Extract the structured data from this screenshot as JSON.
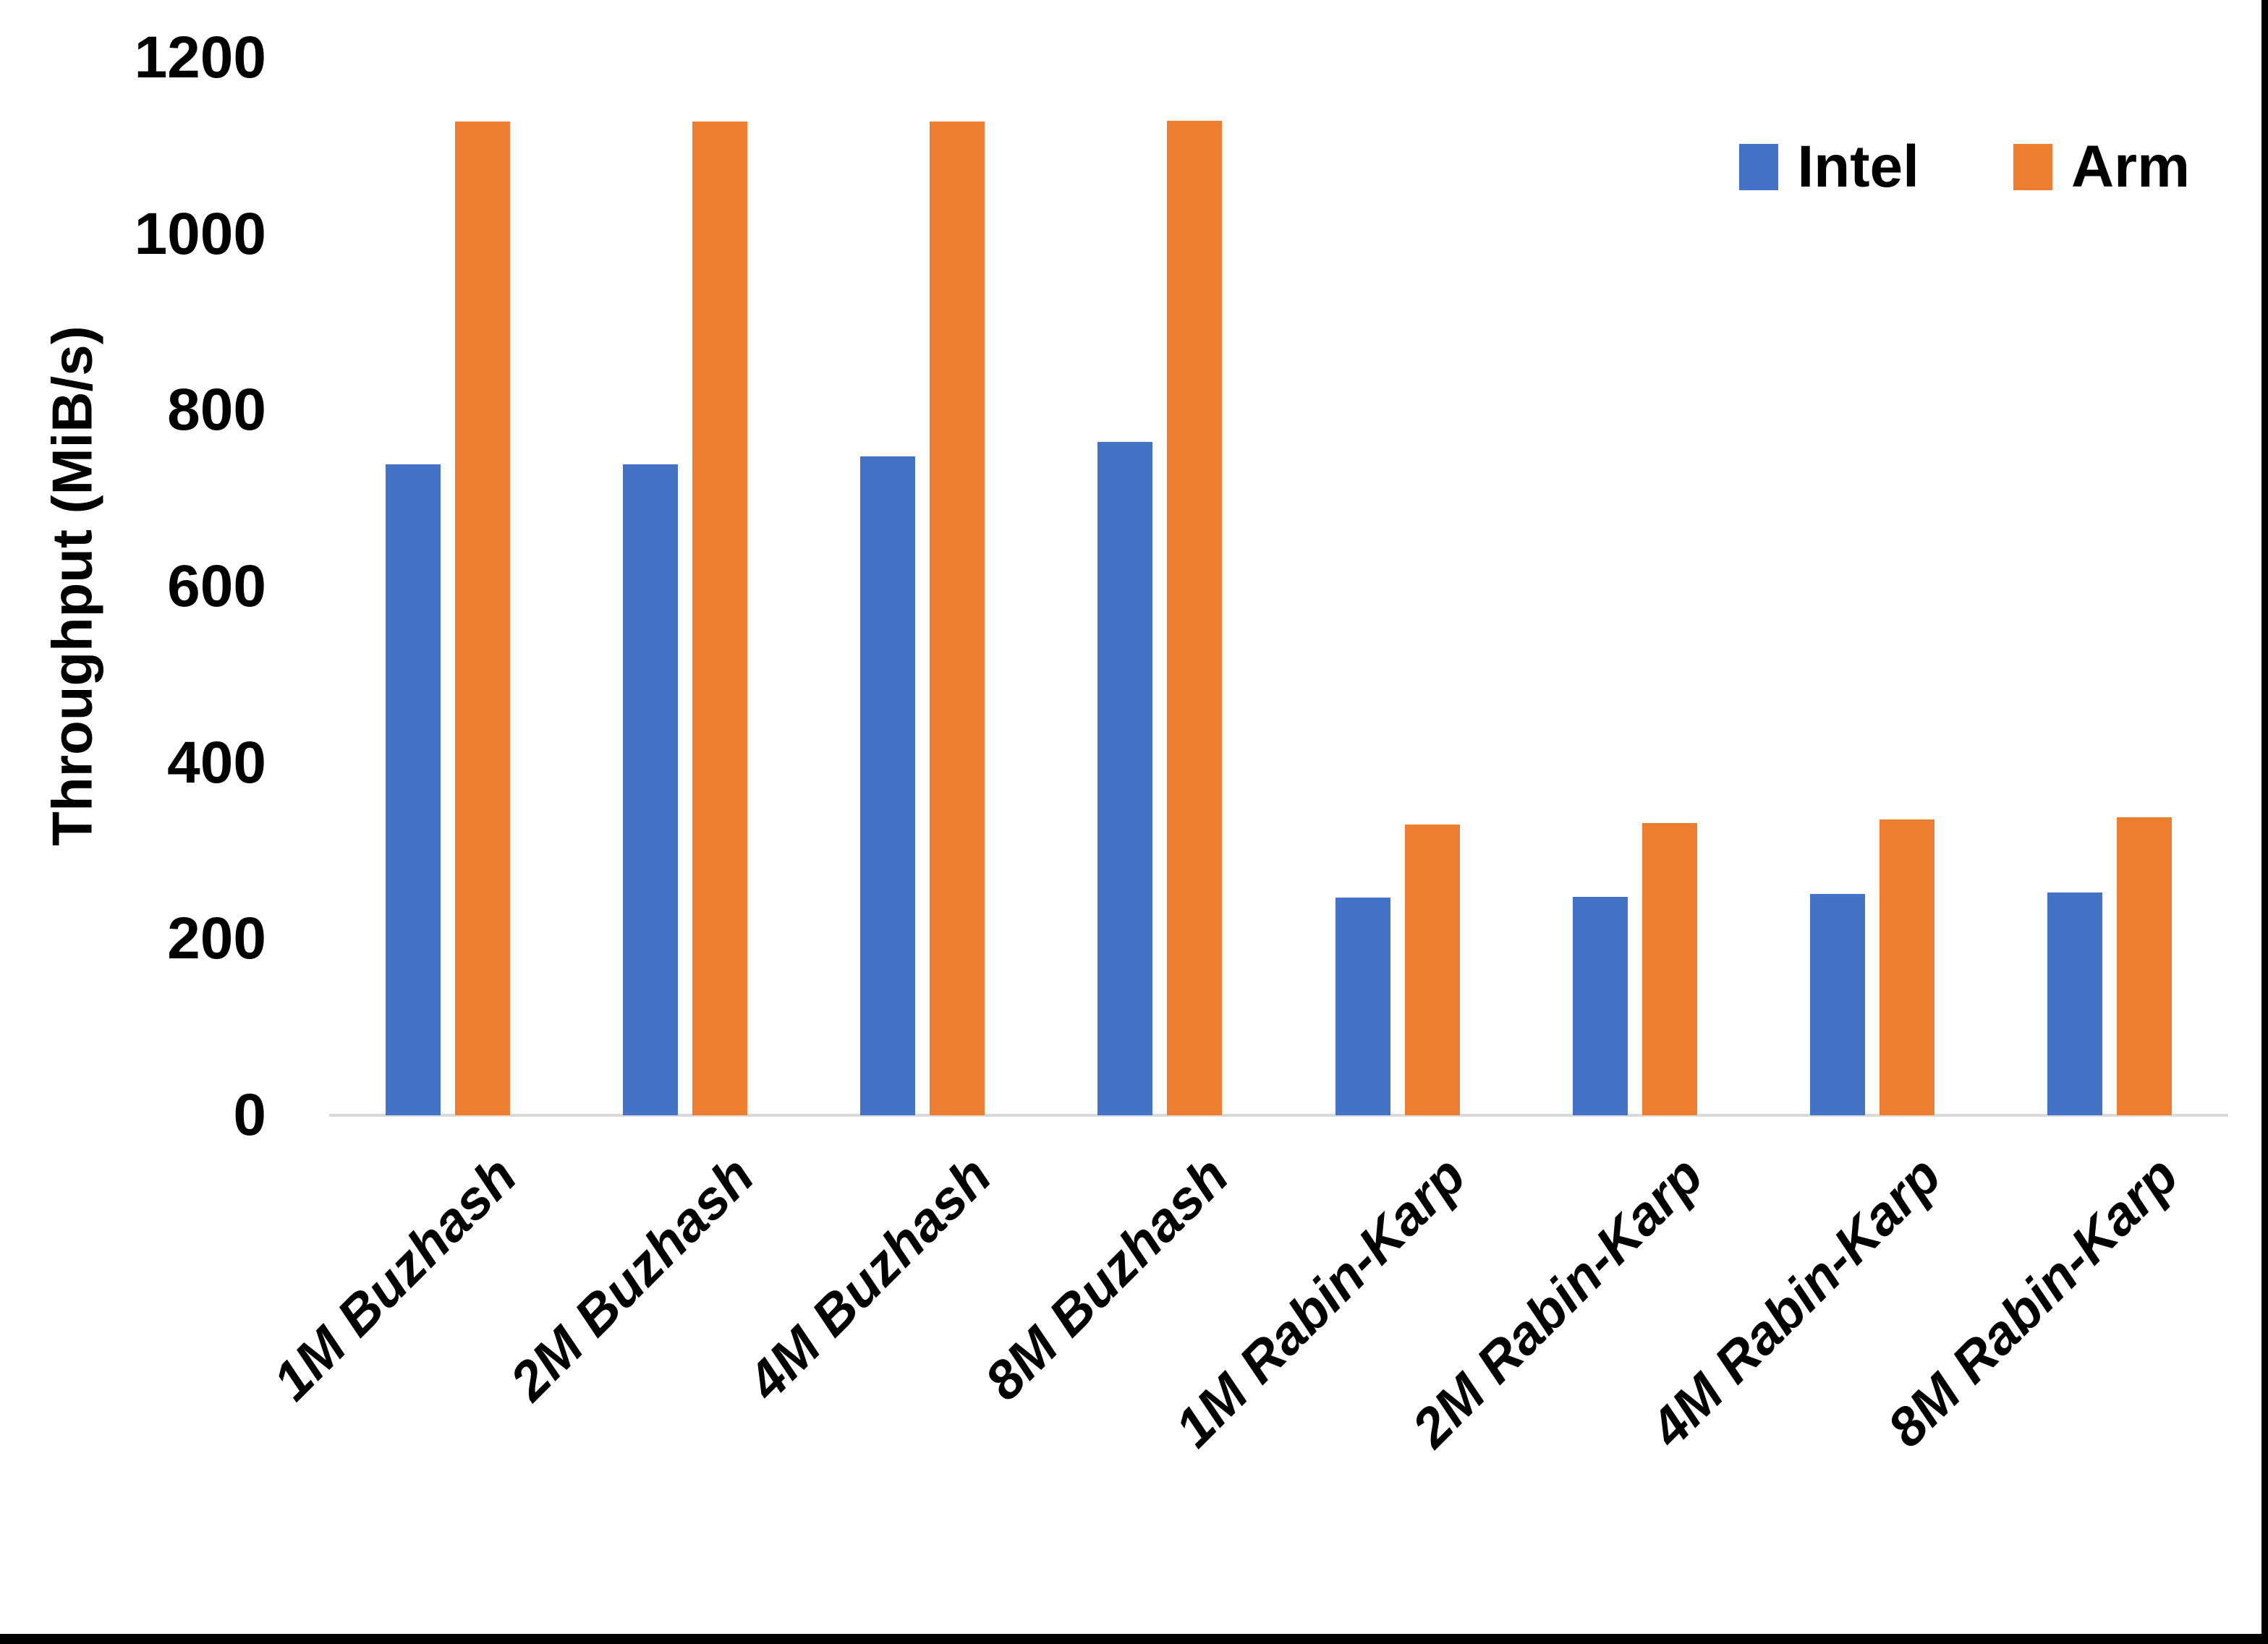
{
  "chart_data": {
    "type": "bar",
    "title": "",
    "ylabel": "Throughput (MiB/s)",
    "xlabel": "",
    "categories": [
      "1M Buzhash",
      "2M Buzhash",
      "4M Buzhash",
      "8M Buzhash",
      "1M Rabin-Karp",
      "2M Rabin-Karp",
      "4M Rabin-Karp",
      "8M Rabin-Karp"
    ],
    "series": [
      {
        "name": "Intel",
        "color": "#4472C4",
        "values": [
          739,
          739,
          748,
          764,
          247,
          248,
          251,
          253
        ]
      },
      {
        "name": "Arm",
        "color": "#ED7D31",
        "values": [
          1128,
          1128,
          1128,
          1129,
          330,
          332,
          336,
          338
        ]
      }
    ],
    "y_ticks": [
      0,
      200,
      400,
      600,
      800,
      1000,
      1200
    ],
    "ylim": [
      0,
      1200
    ],
    "grid": "none (single light-gray baseline axis line only)",
    "legend_position": "top-right",
    "legend": [
      "Intel",
      "Arm"
    ]
  },
  "legend": {
    "items": [
      {
        "label": "Intel",
        "color": "#4472C4"
      },
      {
        "label": "Arm",
        "color": "#ED7D31"
      }
    ]
  },
  "colors": {
    "background": "#ffffff",
    "intel_bar": "#4472C4",
    "arm_bar": "#ED7D31",
    "axis_line": "#d9d9d9",
    "text": "#000000",
    "window_border": "#000000"
  }
}
